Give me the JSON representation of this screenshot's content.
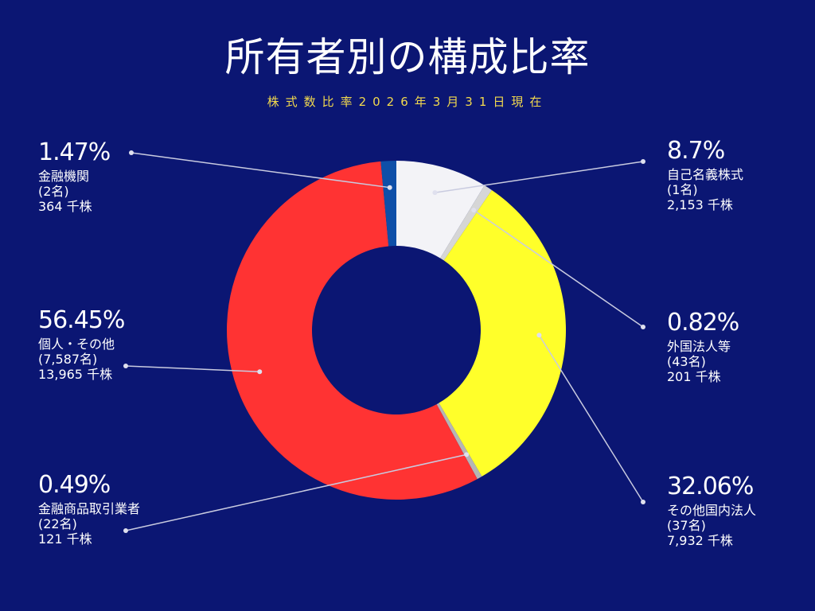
{
  "chart_data": {
    "type": "pie",
    "donut": true,
    "title": "所有者別の構成比率",
    "subtitle": "株式数比率2026年3月31日現在",
    "slices": [
      {
        "name": "自己名義株式",
        "percent": "8.7%",
        "value": 8.7,
        "holders": "(1名)",
        "shares": "2,153 千株",
        "color": "#f3f3f7"
      },
      {
        "name": "外国法人等",
        "percent": "0.82%",
        "value": 0.82,
        "holders": "(43名)",
        "shares": "201 千株",
        "color": "#d6d6d6"
      },
      {
        "name": "その他国内法人",
        "percent": "32.06%",
        "value": 32.06,
        "holders": "(37名)",
        "shares": "7,932 千株",
        "color": "#ffff2a"
      },
      {
        "name": "金融商品取引業者",
        "percent": "0.49%",
        "value": 0.49,
        "holders": "(22名)",
        "shares": "121 千株",
        "color": "#b5b5b5"
      },
      {
        "name": "個人・その他",
        "percent": "56.45%",
        "value": 56.45,
        "holders": "(7,587名)",
        "shares": "13,965 千株",
        "color": "#ff3333"
      },
      {
        "name": "金融機関",
        "percent": "1.47%",
        "value": 1.47,
        "holders": "(2名)",
        "shares": "364 千株",
        "color": "#0e4fa8"
      }
    ]
  }
}
